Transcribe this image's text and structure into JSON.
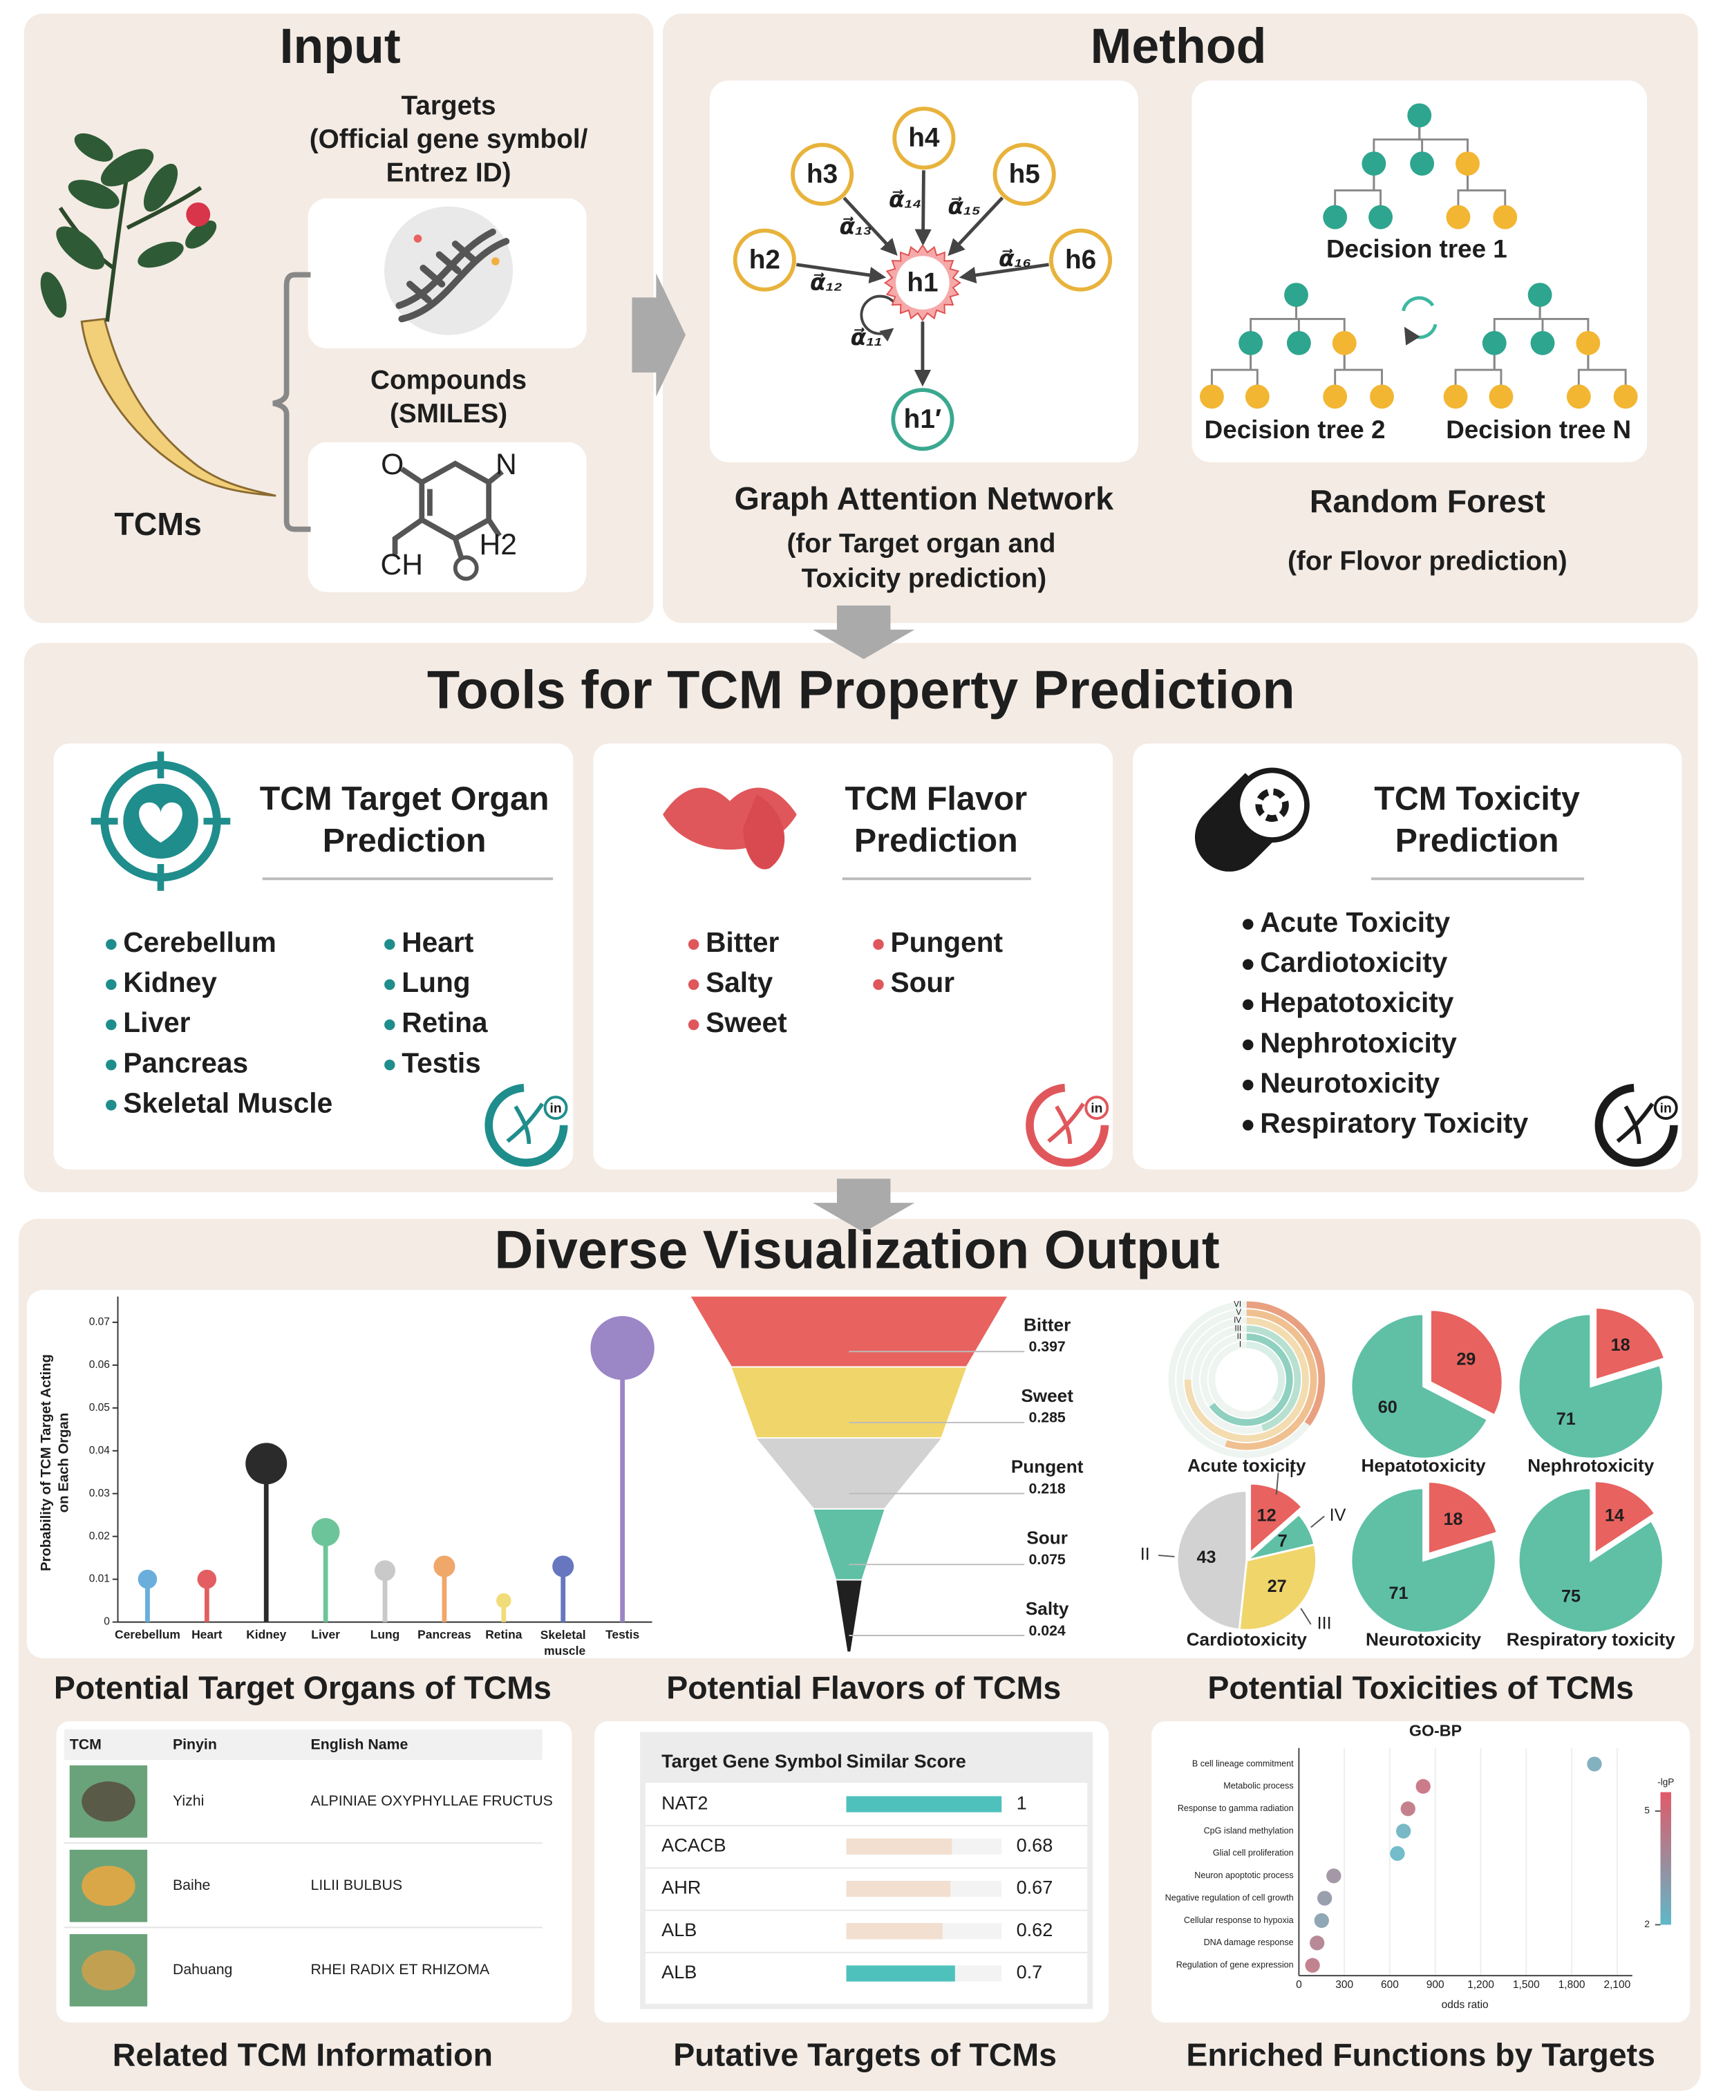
{
  "input": {
    "title": "Input",
    "targets_label": [
      "Targets",
      "(Official gene symbol/",
      "Entrez ID)"
    ],
    "compounds_label": [
      "Compounds",
      "(SMILES)"
    ],
    "smiles_atoms": [
      "O",
      "N",
      "CH",
      "H2"
    ],
    "tcms_label": "TCMs"
  },
  "method": {
    "title": "Method",
    "gat": {
      "nodes": [
        "h4",
        "h3",
        "h5",
        "h2",
        "h1",
        "h6",
        "h1′"
      ],
      "weights": [
        "α⃗₁₂",
        "α⃗₁₃",
        "α⃗₁₄",
        "α⃗₁₅",
        "α⃗₁₆",
        "α⃗₁₁"
      ],
      "name": "Graph Attention Network",
      "purpose": [
        "(for Target organ and",
        "Toxicity prediction)"
      ]
    },
    "random_forest": {
      "trees": [
        "Decision tree 1",
        "Decision tree 2",
        "Decision tree N"
      ],
      "name": "Random Forest",
      "purpose": "(for Flovor prediction)"
    }
  },
  "tools": {
    "title": "Tools for TCM Property Prediction",
    "badge": "in",
    "panels": [
      {
        "title": [
          "TCM Target Organ",
          "Prediction"
        ],
        "color": "#1f8d8c",
        "items": [
          [
            "Cerebellum",
            "Kidney",
            "Liver",
            "Pancreas",
            "Skeletal Muscle"
          ],
          [
            "Heart",
            "Lung",
            "Retina",
            "Testis"
          ]
        ]
      },
      {
        "title": [
          "TCM Flavor",
          "Prediction"
        ],
        "color": "#e0575b",
        "items": [
          [
            "Bitter",
            "Salty",
            "Sweet"
          ],
          [
            "Pungent",
            "Sour"
          ]
        ]
      },
      {
        "title": [
          "TCM Toxicity",
          "Prediction"
        ],
        "color": "#1a1a1a",
        "items": [
          [
            "Acute Toxicity",
            "Cardiotoxicity",
            "Hepatotoxicity",
            "Nephrotoxicity",
            "Neurotoxicity",
            "Respiratory Toxicity"
          ]
        ]
      }
    ]
  },
  "output": {
    "title": "Diverse Visualization Output",
    "organ_chart": {
      "type": "lollipop",
      "caption": "Potential Target Organs of TCMs",
      "ylabel": [
        "Probability of TCM Target Acting",
        "on Each Organ"
      ],
      "categories": [
        "Cerebellum",
        "Heart",
        "Kidney",
        "Liver",
        "Lung",
        "Pancreas",
        "Retina",
        "Skeletal muscle",
        "Testis"
      ],
      "values": [
        0.01,
        0.01,
        0.037,
        0.021,
        0.012,
        0.013,
        0.005,
        0.013,
        0.064
      ],
      "colors": [
        "#6aaedb",
        "#e25e60",
        "#2b2b2b",
        "#6cc59a",
        "#c9c9c9",
        "#f0a76a",
        "#f1dc7a",
        "#6677c0",
        "#9b86c6"
      ],
      "ylim": [
        0,
        0.076
      ],
      "yticks": [
        0,
        0.01,
        0.02,
        0.03,
        0.04,
        0.05,
        0.06,
        0.07
      ]
    },
    "flavor_chart": {
      "type": "funnel",
      "caption": "Potential Flavors of TCMs",
      "categories": [
        "Bitter",
        "Sweet",
        "Pungent",
        "Sour",
        "Salty"
      ],
      "values": [
        0.397,
        0.285,
        0.218,
        0.075,
        0.024
      ],
      "colors": [
        "#e8625f",
        "#f0d56a",
        "#d2d2d2",
        "#5fc0a6",
        "#202020"
      ]
    },
    "toxicity_charts": {
      "caption": "Potential Toxicities of TCMs",
      "acute": {
        "name": "Acute toxicity",
        "rings": [
          "VI",
          "V",
          "IV",
          "III",
          "II",
          "I"
        ]
      },
      "pies": [
        {
          "name": "Hepatotoxicity",
          "values": [
            29,
            60
          ],
          "colors": [
            "#e8625f",
            "#5fc0a6"
          ]
        },
        {
          "name": "Nephrotoxicity",
          "values": [
            18,
            71
          ],
          "colors": [
            "#e8625f",
            "#5fc0a6"
          ]
        },
        {
          "name": "Neurotoxicity",
          "values": [
            18,
            71
          ],
          "colors": [
            "#e8625f",
            "#5fc0a6"
          ]
        },
        {
          "name": "Respiratory toxicity",
          "values": [
            14,
            75
          ],
          "colors": [
            "#e8625f",
            "#5fc0a6"
          ]
        }
      ],
      "cardio": {
        "name": "Cardiotoxicity",
        "values": [
          12,
          7,
          27,
          43
        ],
        "labels": [
          "I",
          "IV",
          "III",
          "II"
        ],
        "colors": [
          "#e8625f",
          "#5fc0a6",
          "#f0d56a",
          "#d2d2d2"
        ]
      }
    },
    "tcm_table": {
      "caption": "Related TCM Information",
      "columns": [
        "TCM",
        "Pinyin",
        "English Name"
      ],
      "rows": [
        {
          "pinyin": "Yizhi",
          "english": "ALPINIAE OXYPHYLLAE FRUCTUS",
          "color": "#5a5a48"
        },
        {
          "pinyin": "Baihe",
          "english": "LILII BULBUS",
          "color": "#d9a748"
        },
        {
          "pinyin": "Dahuang",
          "english": "RHEI RADIX ET RHIZOMA",
          "color": "#c2a052"
        }
      ]
    },
    "targets_table": {
      "caption": "Putative Targets of TCMs",
      "columns": [
        "Target Gene Symbol",
        "Similar Score"
      ],
      "symbols": [
        "NAT2",
        "ACACB",
        "AHR",
        "ALB",
        "ALB"
      ],
      "scores": [
        1,
        0.68,
        0.67,
        0.62,
        0.7
      ],
      "colors": [
        "#4fc1bd",
        "#f2dfcf",
        "#f2dfcf",
        "#f2dfcf",
        "#4fc1bd"
      ],
      "xlim": [
        0,
        1
      ]
    },
    "go_chart": {
      "title": "GO-BP",
      "caption": "Enriched Functions by Targets",
      "terms": [
        "B cell lineage commitment",
        "Metabolic process",
        "Response to gamma radiation",
        "CpG island methylation",
        "Glial cell proliferation",
        "Neuron apoptotic process",
        "Negative regulation of cell growth",
        "Cellular response to hypoxia",
        "DNA damage response",
        "Regulation of gene expression"
      ],
      "odds_ratio": [
        1950,
        820,
        720,
        690,
        650,
        230,
        170,
        150,
        120,
        90
      ],
      "neglogp": [
        2.6,
        4.8,
        4.6,
        2.3,
        2.1,
        3.6,
        3.3,
        3.0,
        4.2,
        4.5
      ],
      "xlim": [
        0,
        2200
      ],
      "xticks": [
        0,
        300,
        600,
        900,
        {
          "value": 1200,
          "label": "1,200"
        },
        {
          "value": 1500,
          "label": "1,500"
        },
        {
          "value": 1800,
          "label": "1,800"
        },
        {
          "value": 2100,
          "label": "2,100"
        }
      ],
      "xlabel": "odds ratio",
      "colorbar": {
        "label": "-lgP",
        "lim": [
          2,
          5.5
        ],
        "ticks": [
          5,
          2
        ]
      }
    }
  }
}
